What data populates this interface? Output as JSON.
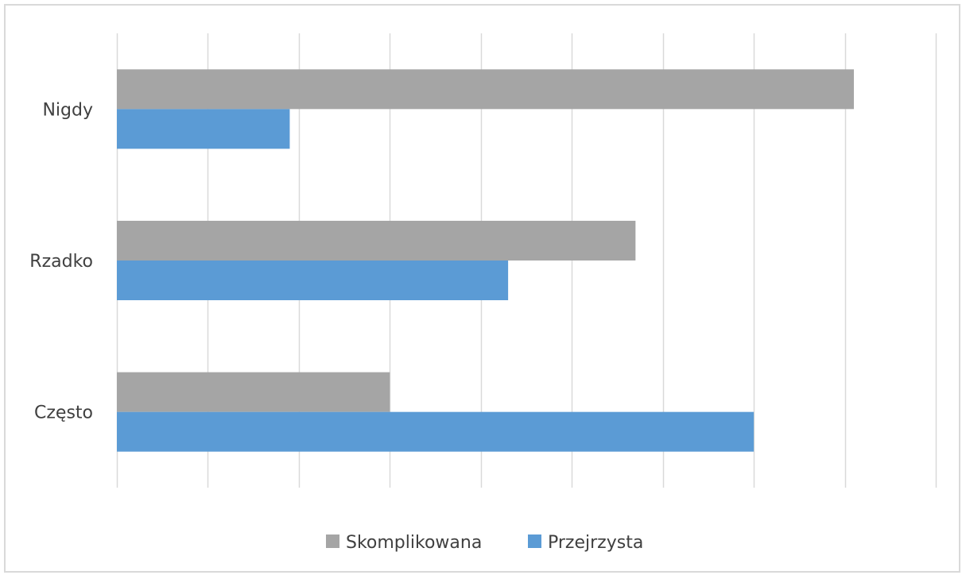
{
  "chart_data": {
    "type": "bar",
    "orientation": "horizontal",
    "categories": [
      "Nigdy",
      "Rzadko",
      "Często"
    ],
    "series": [
      {
        "name": "Skomplikowana",
        "color": "#a5a5a5",
        "values": [
          81,
          57,
          30
        ]
      },
      {
        "name": "Przejrzysta",
        "color": "#5b9bd5",
        "values": [
          19,
          43,
          70
        ]
      }
    ],
    "xlim": [
      0,
      90
    ],
    "gridlines": true,
    "gridline_step": 10,
    "axis_tick_labels_shown": false,
    "legend_position": "bottom"
  }
}
